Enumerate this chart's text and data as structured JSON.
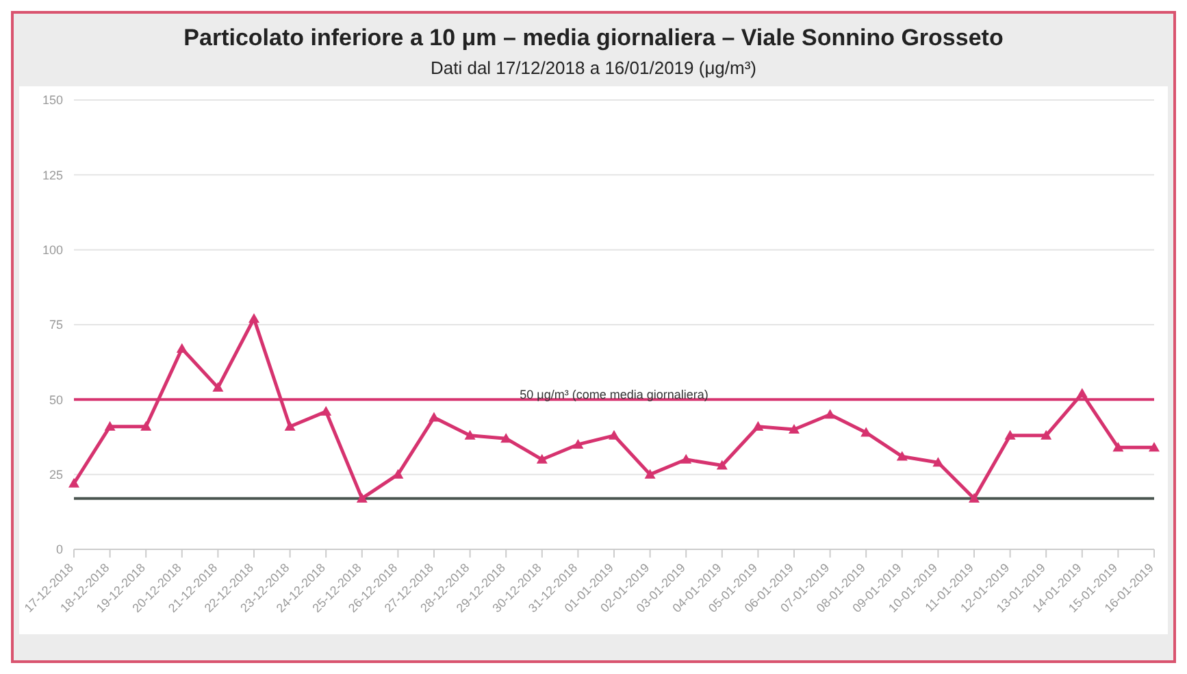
{
  "chart_data": {
    "type": "line",
    "title": "Particolato inferiore a 10 μm – media giornaliera – Viale Sonnino Grosseto",
    "subtitle": "Dati dal 17/12/2018 a 16/01/2019 (μg/m³)",
    "categories": [
      "17-12-2018",
      "18-12-2018",
      "19-12-2018",
      "20-12-2018",
      "21-12-2018",
      "22-12-2018",
      "23-12-2018",
      "24-12-2018",
      "25-12-2018",
      "26-12-2018",
      "27-12-2018",
      "28-12-2018",
      "29-12-2018",
      "30-12-2018",
      "31-12-2018",
      "01-01-2019",
      "02-01-2019",
      "03-01-2019",
      "04-01-2019",
      "05-01-2019",
      "06-01-2019",
      "07-01-2019",
      "08-01-2019",
      "09-01-2019",
      "10-01-2019",
      "11-01-2019",
      "12-01-2019",
      "13-01-2019",
      "14-01-2019",
      "15-01-2019",
      "16-01-2019"
    ],
    "series": [
      {
        "color": "#d6336f",
        "values": [
          22,
          41,
          41,
          67,
          54,
          77,
          41,
          46,
          17,
          25,
          44,
          38,
          37,
          30,
          35,
          38,
          25,
          30,
          28,
          41,
          40,
          45,
          39,
          31,
          29,
          17,
          38,
          38,
          52,
          34,
          34
        ]
      }
    ],
    "ylim": [
      0,
      150
    ],
    "yticks": [
      0,
      25,
      50,
      75,
      100,
      125,
      150
    ],
    "grid": "y",
    "marker": "triangle",
    "ref_lines": [
      {
        "axis": "y",
        "value": 50,
        "label": "50 μg/m³ (come media giornaliera)",
        "color": "#d6336f"
      },
      {
        "axis": "y",
        "value": 17,
        "label": null,
        "color": "#4a5550"
      }
    ]
  }
}
